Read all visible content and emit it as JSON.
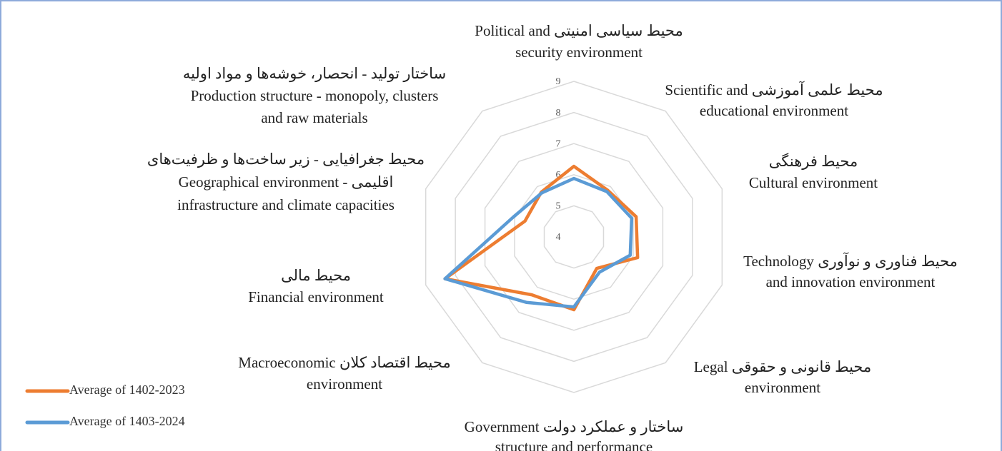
{
  "chart_data": {
    "type": "radar",
    "categories": [
      [
        "محیط سیاسی امنیتی  Political and",
        "security environment"
      ],
      [
        "محیط علمی آموزشی  Scientific and",
        "educational environment"
      ],
      [
        "محیط فرهنگی",
        "Cultural environment"
      ],
      [
        "محیط فناوری و نوآوری  Technology",
        "and innovation environment"
      ],
      [
        "محیط قانونی و حقوقی  Legal",
        "environment"
      ],
      [
        "ساختار و عملکرد دولت  Government",
        "structure and performance"
      ],
      [
        "محیط اقتصاد کلان  Macroeconomic",
        "environment"
      ],
      [
        "محیط مالی",
        "Financial environment"
      ],
      [
        "محیط جغرافیایی - زیر ساخت‌ها و ظرفیت‌های",
        "اقلیمی  - Geographical environment",
        "infrastructure and climate capacities"
      ],
      [
        "ساختار تولید - انحصار، خوشه‌ها و مواد اولیه",
        "Production structure - monopoly, clusters",
        "and raw materials"
      ]
    ],
    "series": [
      {
        "name": "Average of 1402-2023",
        "color": "#ed7d31",
        "values": [
          6.27,
          5.85,
          6.1,
          6.15,
          5.25,
          6.34,
          6.3,
          8.35,
          5.65,
          5.78
        ]
      },
      {
        "name": "Average of 1403-2024",
        "color": "#5b9bd5",
        "values": [
          5.88,
          5.8,
          5.95,
          5.9,
          5.4,
          6.25,
          6.6,
          8.35,
          6.05,
          5.75
        ]
      }
    ],
    "ylim": [
      4,
      9
    ],
    "yticks": [
      4,
      5,
      6,
      7,
      8,
      9
    ],
    "grid": true,
    "legend": "bottom-left"
  }
}
